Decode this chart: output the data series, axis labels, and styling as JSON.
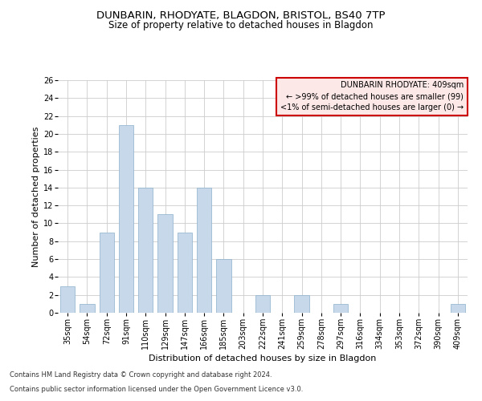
{
  "title": "DUNBARIN, RHODYATE, BLAGDON, BRISTOL, BS40 7TP",
  "subtitle": "Size of property relative to detached houses in Blagdon",
  "xlabel": "Distribution of detached houses by size in Blagdon",
  "ylabel": "Number of detached properties",
  "categories": [
    "35sqm",
    "54sqm",
    "72sqm",
    "91sqm",
    "110sqm",
    "129sqm",
    "147sqm",
    "166sqm",
    "185sqm",
    "203sqm",
    "222sqm",
    "241sqm",
    "259sqm",
    "278sqm",
    "297sqm",
    "316sqm",
    "334sqm",
    "353sqm",
    "372sqm",
    "390sqm",
    "409sqm"
  ],
  "values": [
    3,
    1,
    9,
    21,
    14,
    11,
    9,
    14,
    6,
    0,
    2,
    0,
    2,
    0,
    1,
    0,
    0,
    0,
    0,
    0,
    1
  ],
  "bar_color": "#c8d8eb",
  "bar_edge_color": "#8ab0cc",
  "ylim": [
    0,
    26
  ],
  "yticks": [
    0,
    2,
    4,
    6,
    8,
    10,
    12,
    14,
    16,
    18,
    20,
    22,
    24,
    26
  ],
  "annotation_title": "DUNBARIN RHODYATE: 409sqm",
  "annotation_line1": "← >99% of detached houses are smaller (99)",
  "annotation_line2": "<1% of semi-detached houses are larger (0) →",
  "footer_line1": "Contains HM Land Registry data © Crown copyright and database right 2024.",
  "footer_line2": "Contains public sector information licensed under the Open Government Licence v3.0.",
  "background_color": "#ffffff",
  "grid_color": "#cccccc",
  "annotation_box_color": "#fde8e8",
  "annotation_border_color": "#cc0000",
  "title_fontsize": 9.5,
  "subtitle_fontsize": 8.5,
  "axis_label_fontsize": 8,
  "tick_fontsize": 7,
  "annotation_fontsize": 7,
  "footer_fontsize": 6
}
